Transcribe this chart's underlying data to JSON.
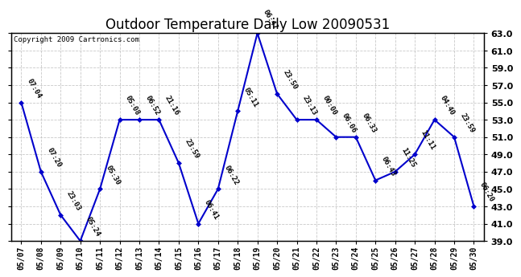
{
  "title": "Outdoor Temperature Daily Low 20090531",
  "copyright": "Copyright 2009 Cartronics.com",
  "dates": [
    "05/07",
    "05/08",
    "05/09",
    "05/10",
    "05/11",
    "05/12",
    "05/13",
    "05/14",
    "05/15",
    "05/16",
    "05/17",
    "05/18",
    "05/19",
    "05/20",
    "05/21",
    "05/22",
    "05/23",
    "05/24",
    "05/25",
    "05/26",
    "05/27",
    "05/28",
    "05/29",
    "05/30"
  ],
  "values": [
    55.0,
    47.0,
    42.0,
    39.0,
    45.0,
    53.0,
    53.0,
    53.0,
    48.0,
    41.0,
    45.0,
    54.0,
    63.0,
    56.0,
    53.0,
    53.0,
    51.0,
    51.0,
    46.0,
    47.0,
    49.0,
    53.0,
    51.0,
    43.0
  ],
  "time_labels": [
    "07:04",
    "07:20",
    "23:03",
    "05:24",
    "05:30",
    "05:08",
    "06:52",
    "21:16",
    "23:59",
    "06:41",
    "06:22",
    "05:11",
    "06:47",
    "23:50",
    "23:13",
    "00:00",
    "06:06",
    "06:33",
    "06:43",
    "11:25",
    "11:11",
    "04:40",
    "23:59",
    "06:20"
  ],
  "ylim": [
    39.0,
    63.0
  ],
  "yticks": [
    39.0,
    41.0,
    43.0,
    45.0,
    47.0,
    49.0,
    51.0,
    53.0,
    55.0,
    57.0,
    59.0,
    61.0,
    63.0
  ],
  "line_color": "#0000cc",
  "marker_color": "#0000cc",
  "background_color": "#ffffff",
  "grid_color": "#bbbbbb",
  "title_fontsize": 12,
  "annotation_fontsize": 6.5
}
